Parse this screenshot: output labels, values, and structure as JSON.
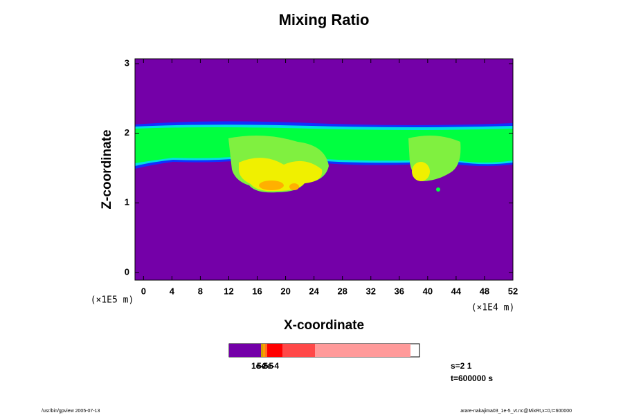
{
  "chart_data": {
    "type": "contour",
    "title": "Mixing Ratio",
    "x_label": "X-coordinate",
    "y_label": "Z-coordinate",
    "x_unit": "(×1E4 m)",
    "y_unit": "(×1E5 m)",
    "xlim": [
      -1.2,
      52
    ],
    "ylim": [
      -0.11,
      3.07
    ],
    "xticks": [
      0,
      4,
      8,
      12,
      16,
      20,
      24,
      28,
      32,
      36,
      40,
      44,
      48,
      52
    ],
    "yticks": [
      0,
      1,
      2,
      3
    ],
    "colorbar": {
      "colors": [
        "#7400a8",
        "#d4a000",
        "#ff9a00",
        "#ff7020",
        "#ff0000",
        "#ff4848",
        "#ff9a9a"
      ],
      "labels": [
        "1e-5",
        "5e-5",
        "2e-4"
      ]
    },
    "notes": [
      "s=2 1",
      "t=600000 s"
    ],
    "footer_left": "/usr/bin/gpview 2005-07-13",
    "footer_right": "arare-nakajima03_1e-5_vt.nc@MixRt,x=0,t=600000"
  }
}
